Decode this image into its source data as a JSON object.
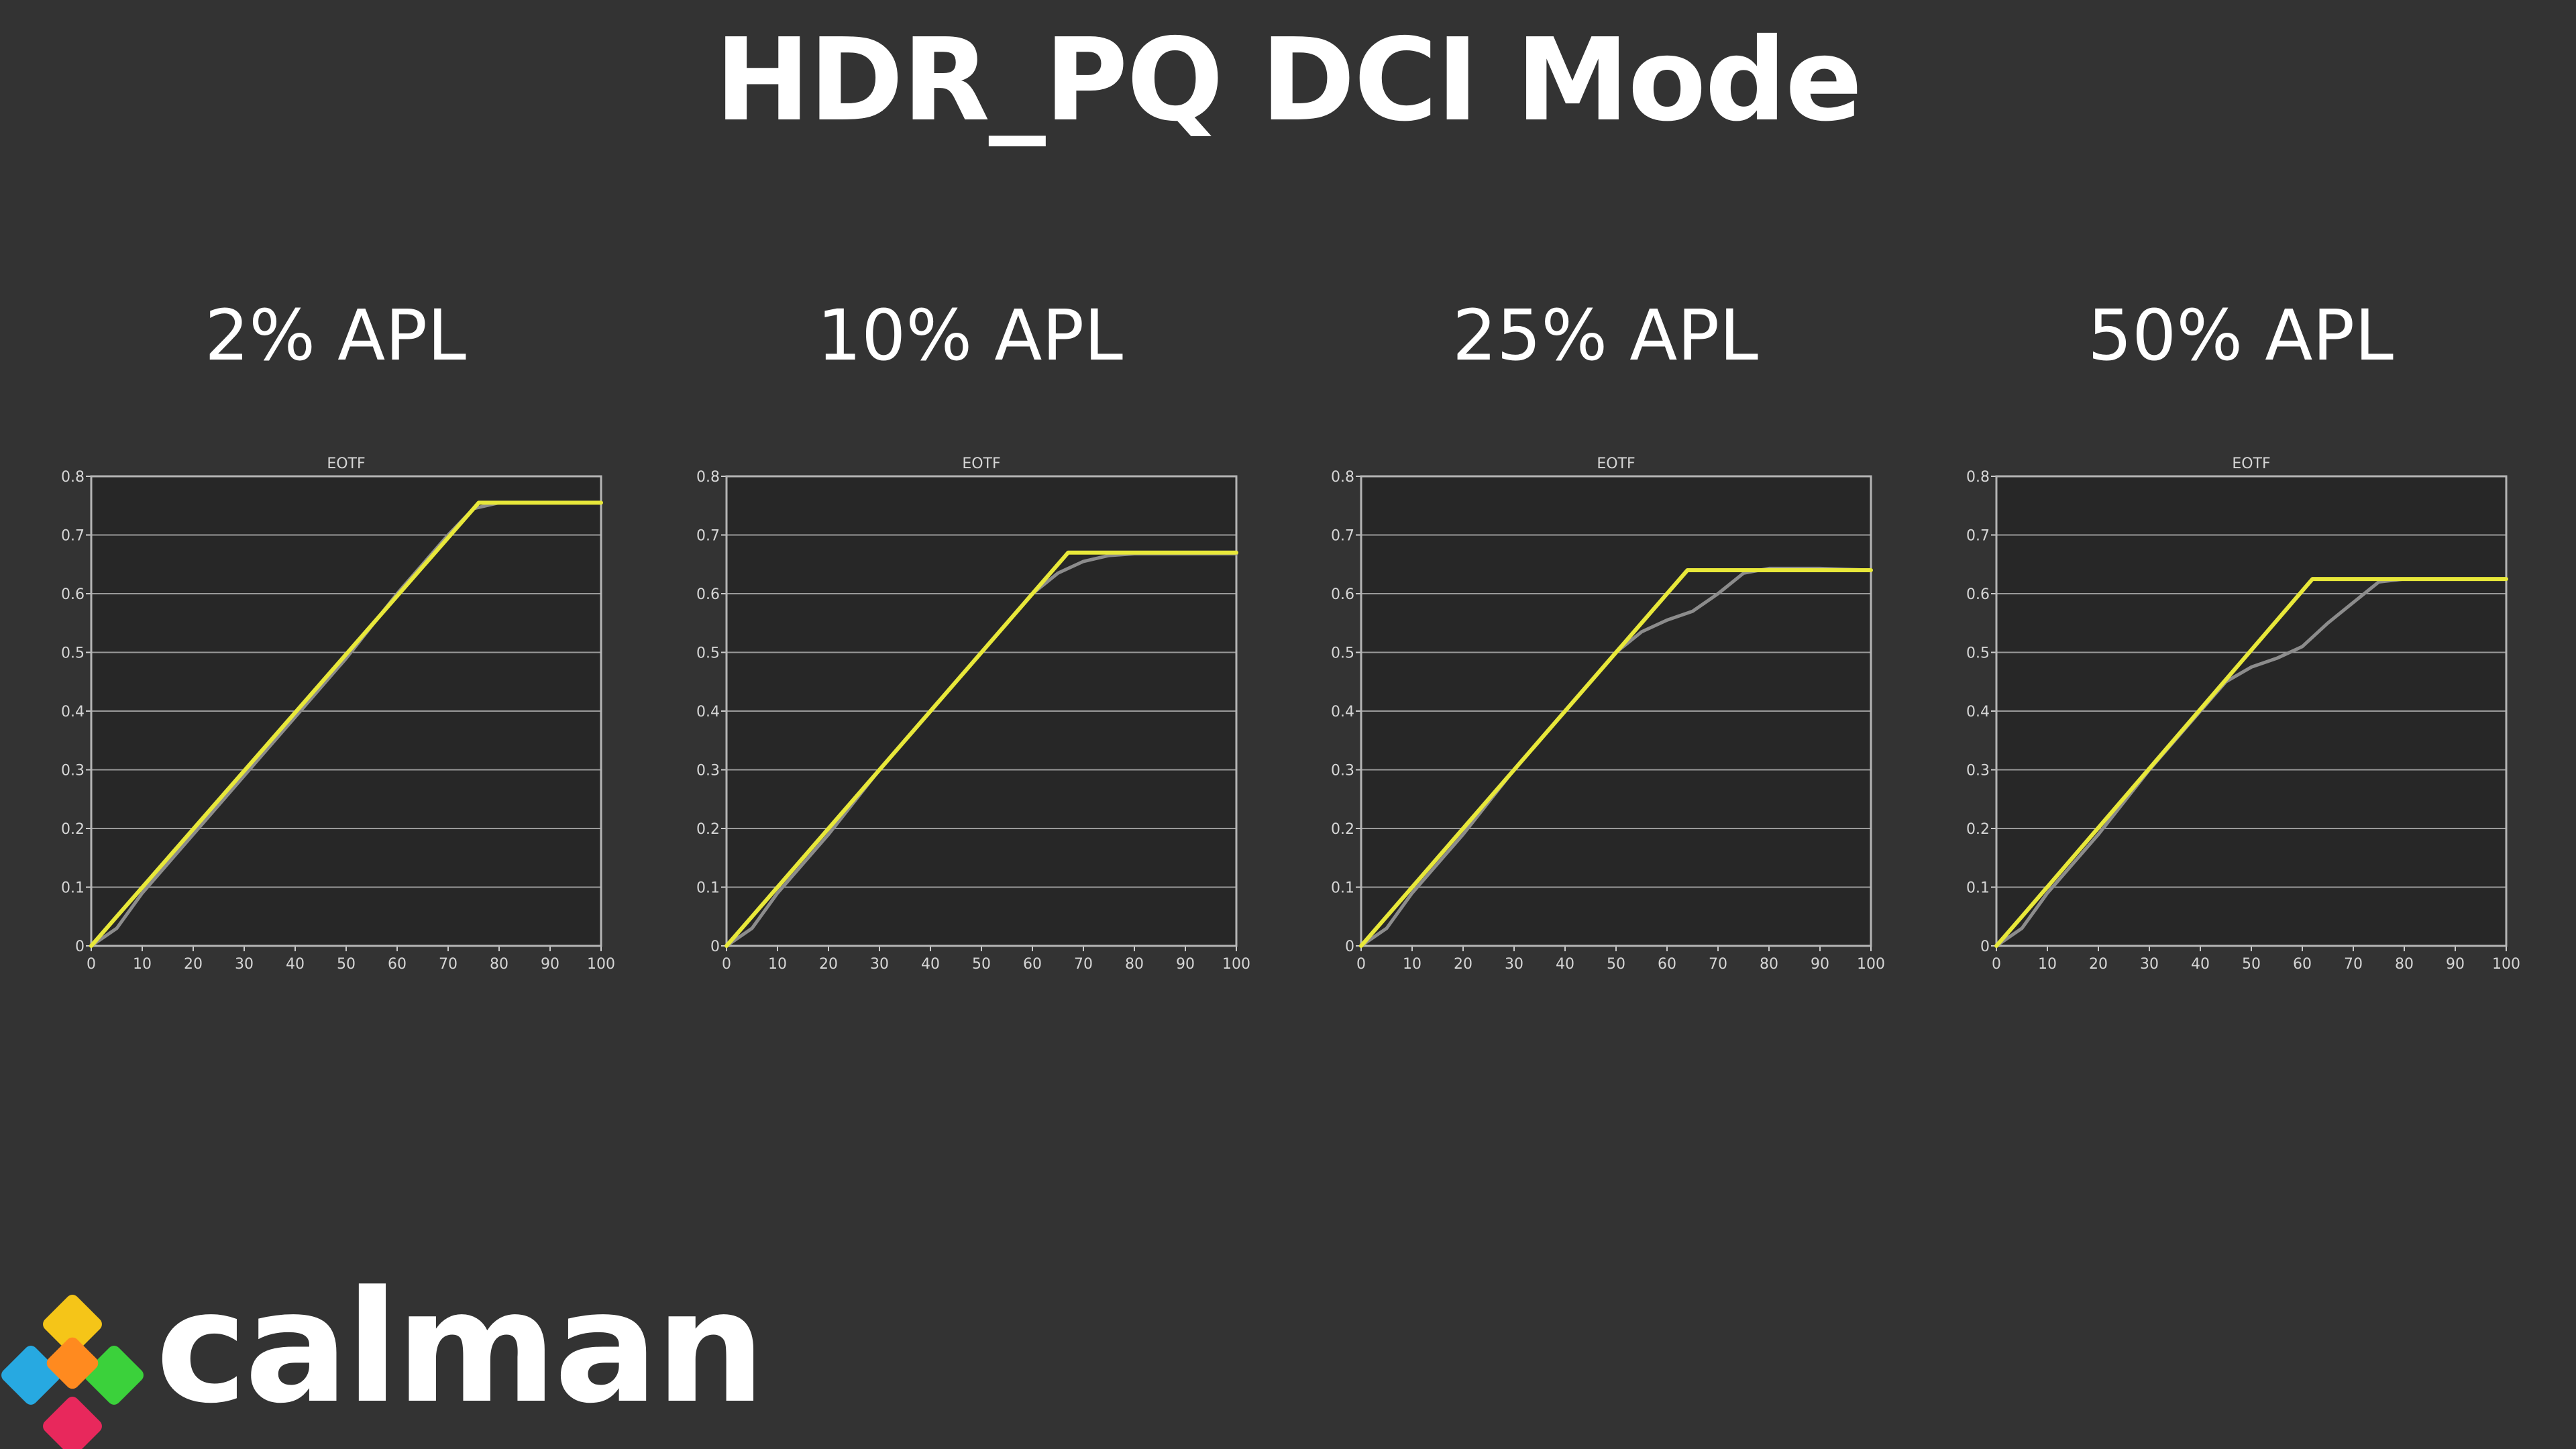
{
  "page": {
    "title": "HDR_PQ DCI Mode"
  },
  "logo": {
    "text": "calman",
    "colors": [
      "#f5c518",
      "#ff8a1f",
      "#27a9e1",
      "#3bd13b",
      "#e8285c"
    ]
  },
  "colors": {
    "target": "#e8e83a",
    "measured": "#8c8c8c",
    "plot_bg": "#272727",
    "grid": "#9a9a9a"
  },
  "chart_data": [
    {
      "type": "line",
      "heading": "2% APL",
      "title": "EOTF",
      "xlim": [
        0,
        100
      ],
      "ylim": [
        0,
        0.8
      ],
      "xticks": [
        0,
        10,
        20,
        30,
        40,
        50,
        60,
        70,
        80,
        90,
        100
      ],
      "yticks": [
        0,
        0.1,
        0.2,
        0.3,
        0.4,
        0.5,
        0.6,
        0.7,
        0.8
      ],
      "grid": true,
      "series": [
        {
          "role": "target",
          "x": [
            0,
            5,
            76,
            100
          ],
          "y": [
            0,
            0.05,
            0.755,
            0.755
          ]
        },
        {
          "role": "measured",
          "x": [
            0,
            5,
            10,
            20,
            30,
            40,
            50,
            60,
            70,
            75,
            80,
            100
          ],
          "y": [
            0,
            0.03,
            0.09,
            0.19,
            0.29,
            0.39,
            0.49,
            0.6,
            0.7,
            0.745,
            0.755,
            0.755
          ]
        }
      ]
    },
    {
      "type": "line",
      "heading": "10% APL",
      "title": "EOTF",
      "xlim": [
        0,
        100
      ],
      "ylim": [
        0,
        0.8
      ],
      "xticks": [
        0,
        10,
        20,
        30,
        40,
        50,
        60,
        70,
        80,
        90,
        100
      ],
      "yticks": [
        0,
        0.1,
        0.2,
        0.3,
        0.4,
        0.5,
        0.6,
        0.7,
        0.8
      ],
      "grid": true,
      "series": [
        {
          "role": "target",
          "x": [
            0,
            5,
            67,
            100
          ],
          "y": [
            0,
            0.05,
            0.67,
            0.67
          ]
        },
        {
          "role": "measured",
          "x": [
            0,
            5,
            10,
            20,
            30,
            40,
            50,
            60,
            65,
            70,
            75,
            80,
            100
          ],
          "y": [
            0,
            0.03,
            0.09,
            0.19,
            0.3,
            0.4,
            0.5,
            0.6,
            0.635,
            0.655,
            0.665,
            0.668,
            0.668
          ]
        }
      ]
    },
    {
      "type": "line",
      "heading": "25% APL",
      "title": "EOTF",
      "xlim": [
        0,
        100
      ],
      "ylim": [
        0,
        0.8
      ],
      "xticks": [
        0,
        10,
        20,
        30,
        40,
        50,
        60,
        70,
        80,
        90,
        100
      ],
      "yticks": [
        0,
        0.1,
        0.2,
        0.3,
        0.4,
        0.5,
        0.6,
        0.7,
        0.8
      ],
      "grid": true,
      "series": [
        {
          "role": "target",
          "x": [
            0,
            5,
            64,
            100
          ],
          "y": [
            0,
            0.05,
            0.64,
            0.64
          ]
        },
        {
          "role": "measured",
          "x": [
            0,
            5,
            10,
            20,
            30,
            40,
            50,
            55,
            60,
            65,
            70,
            75,
            80,
            90,
            100
          ],
          "y": [
            0,
            0.03,
            0.09,
            0.19,
            0.3,
            0.4,
            0.5,
            0.535,
            0.555,
            0.57,
            0.6,
            0.635,
            0.643,
            0.643,
            0.64
          ]
        }
      ]
    },
    {
      "type": "line",
      "heading": "50% APL",
      "title": "EOTF",
      "xlim": [
        0,
        100
      ],
      "ylim": [
        0,
        0.8
      ],
      "xticks": [
        0,
        10,
        20,
        30,
        40,
        50,
        60,
        70,
        80,
        90,
        100
      ],
      "yticks": [
        0,
        0.1,
        0.2,
        0.3,
        0.4,
        0.5,
        0.6,
        0.7,
        0.8
      ],
      "grid": true,
      "series": [
        {
          "role": "target",
          "x": [
            0,
            5,
            62,
            100
          ],
          "y": [
            0,
            0.05,
            0.625,
            0.625
          ]
        },
        {
          "role": "measured",
          "x": [
            0,
            5,
            10,
            20,
            30,
            40,
            45,
            50,
            55,
            60,
            65,
            70,
            75,
            80,
            90,
            100
          ],
          "y": [
            0,
            0.03,
            0.09,
            0.19,
            0.3,
            0.4,
            0.45,
            0.475,
            0.49,
            0.51,
            0.55,
            0.585,
            0.62,
            0.625,
            0.625,
            0.625
          ]
        }
      ]
    }
  ]
}
